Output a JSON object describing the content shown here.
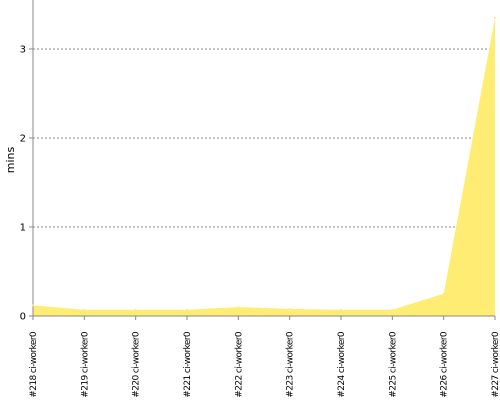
{
  "chart_data": {
    "type": "area",
    "ylabel": "mins",
    "xlabel": "",
    "categories": [
      "#218 ci-worker0",
      "#219 ci-worker0",
      "#220 ci-worker0",
      "#221 ci-worker0",
      "#222 ci-worker0",
      "#223 ci-worker0",
      "#224 ci-worker0",
      "#225 ci-worker0",
      "#226 ci-worker0",
      "#227 ci-worker0"
    ],
    "series": [
      {
        "values": [
          0.12,
          0.07,
          0.07,
          0.07,
          0.1,
          0.08,
          0.07,
          0.07,
          0.25,
          3.35
        ],
        "color": "#FFEC73"
      }
    ],
    "ylim": [
      0,
      3.55
    ],
    "yticks": [
      "0",
      "1",
      "2",
      "3"
    ],
    "grid": true,
    "legend": "none"
  }
}
